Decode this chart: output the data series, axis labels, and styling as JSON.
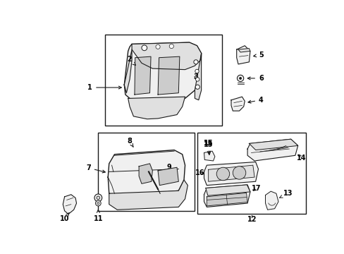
{
  "background_color": "#ffffff",
  "line_color": "#1a1a1a",
  "fill_light": "#f0f0f0",
  "fill_mid": "#e0e0e0",
  "fill_dark": "#cccccc"
}
